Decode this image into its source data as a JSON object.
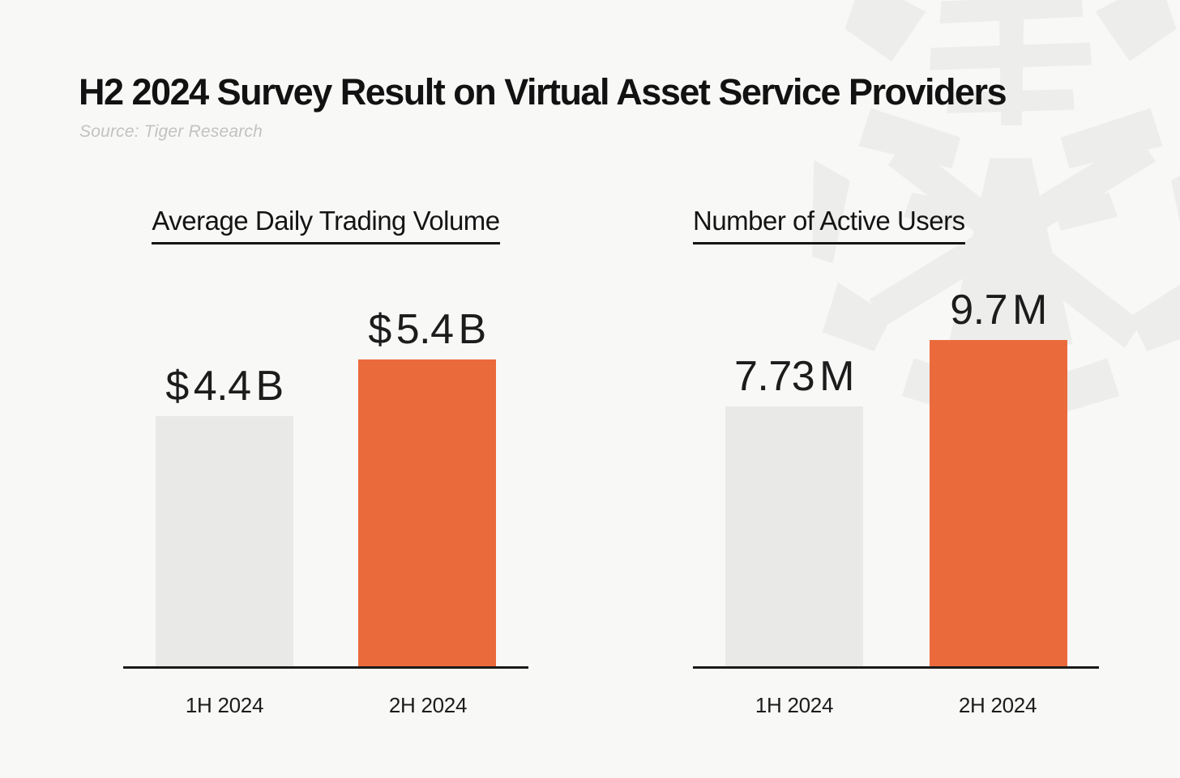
{
  "page": {
    "title": "H2 2024 Survey Result on Virtual Asset Service Providers",
    "source_note": "Source: Tiger Research",
    "watermark_icon": "tiger-logo"
  },
  "colors": {
    "background": "#F8F8F7",
    "text": "#141414",
    "muted_text": "#C2C2C0",
    "bar_previous_period": "#E9E9E8",
    "bar_current_period": "#EB6A3C",
    "axis": "#1A1A1A",
    "watermark": "#EDEDEB"
  },
  "chart_data": [
    {
      "type": "bar",
      "title": "Average Daily Trading Volume",
      "categories": [
        "1H 2024",
        "2H 2024"
      ],
      "values": [
        4.4,
        5.4
      ],
      "value_labels": [
        "$ 4.4 B",
        "$ 5.4 B"
      ],
      "series_colors": [
        "#E9E9E8",
        "#EB6A3C"
      ],
      "ylim": [
        0,
        6
      ],
      "grid": false,
      "legend": "none"
    },
    {
      "type": "bar",
      "title": "Number of Active Users",
      "categories": [
        "1H 2024",
        "2H 2024"
      ],
      "values": [
        7.73,
        9.7
      ],
      "value_labels": [
        "7.73 M",
        "9.7 M"
      ],
      "series_colors": [
        "#E9E9E8",
        "#EB6A3C"
      ],
      "ylim": [
        0,
        12
      ],
      "grid": false,
      "legend": "none"
    }
  ]
}
